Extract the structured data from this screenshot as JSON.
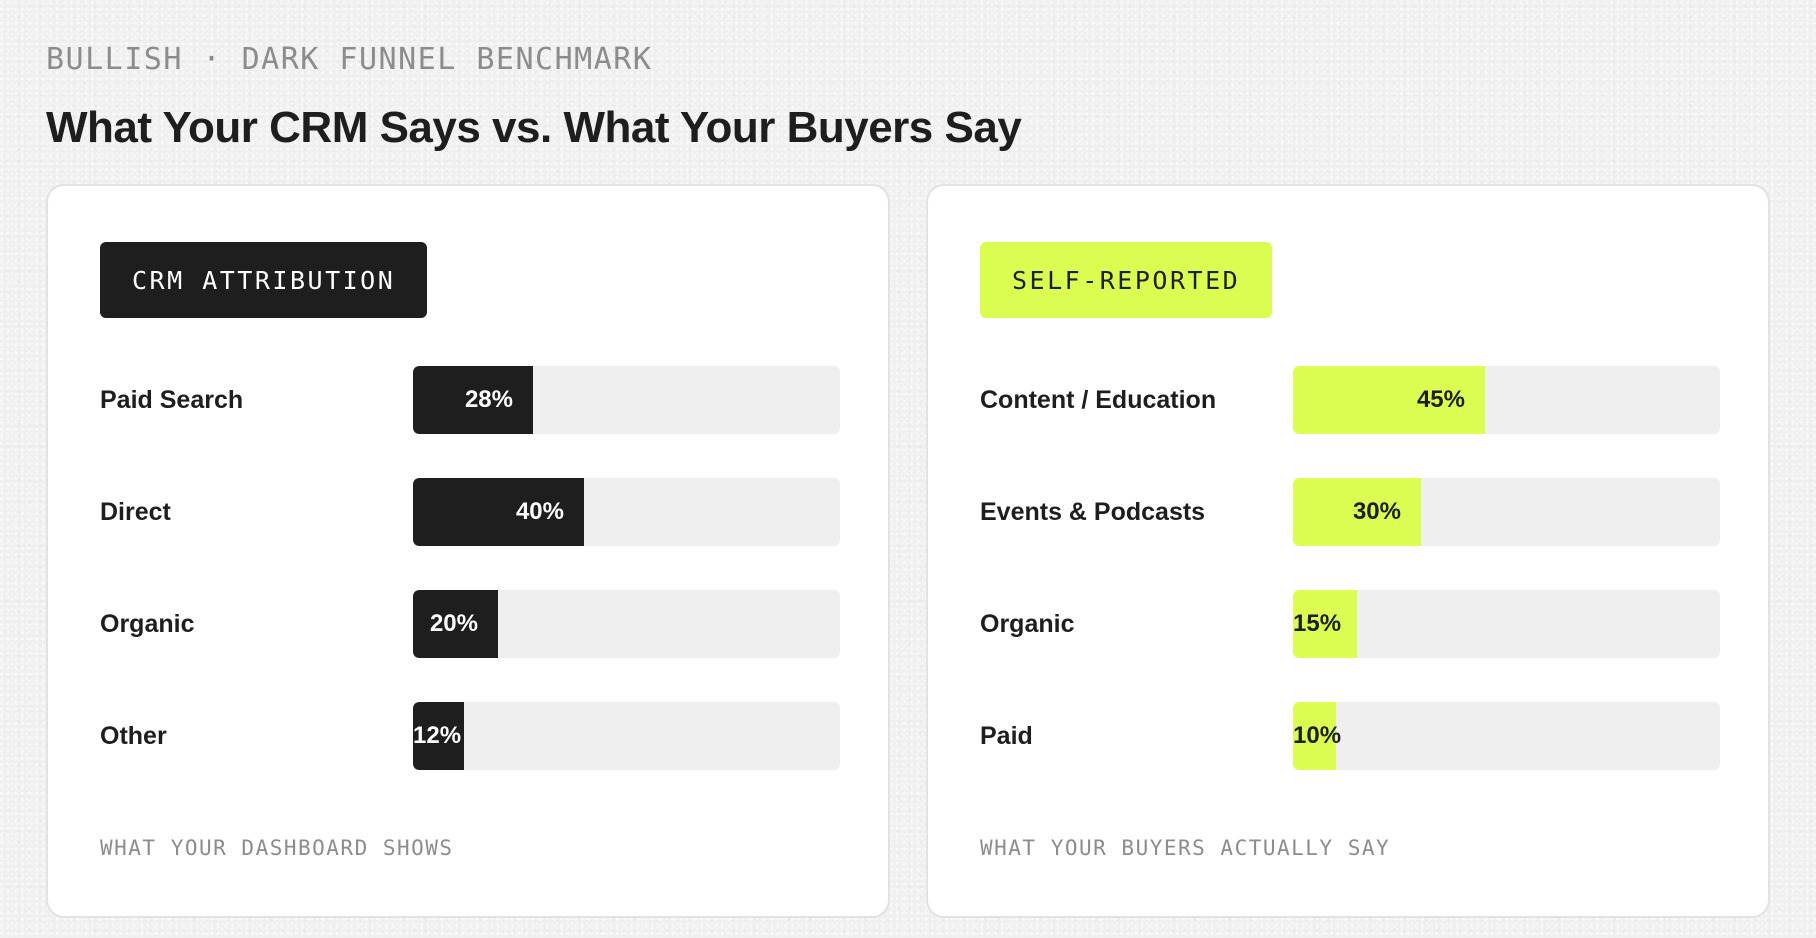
{
  "header": {
    "eyebrow": "BULLISH · DARK FUNNEL BENCHMARK",
    "title": "What Your CRM Says vs. What Your Buyers Say"
  },
  "colors": {
    "dark": "#1e1e1e",
    "accent": "#dbfc50",
    "track": "#efefef",
    "muted": "#8c8c8c"
  },
  "chart_data": [
    {
      "type": "bar",
      "orientation": "horizontal",
      "tag": "CRM ATTRIBUTION",
      "caption": "WHAT YOUR DASHBOARD SHOWS",
      "value_unit": "%",
      "xlim": [
        0,
        100
      ],
      "categories": [
        "Paid Search",
        "Direct",
        "Organic",
        "Other"
      ],
      "values": [
        28,
        40,
        20,
        12
      ],
      "value_labels": [
        "28%",
        "40%",
        "20%",
        "12%"
      ],
      "color": "#1e1e1e"
    },
    {
      "type": "bar",
      "orientation": "horizontal",
      "tag": "SELF-REPORTED",
      "caption": "WHAT YOUR BUYERS ACTUALLY SAY",
      "value_unit": "%",
      "xlim": [
        0,
        100
      ],
      "categories": [
        "Content / Education",
        "Events & Podcasts",
        "Organic",
        "Paid"
      ],
      "values": [
        45,
        30,
        15,
        10
      ],
      "value_labels": [
        "45%",
        "30%",
        "15%",
        "10%"
      ],
      "color": "#dbfc50"
    }
  ]
}
